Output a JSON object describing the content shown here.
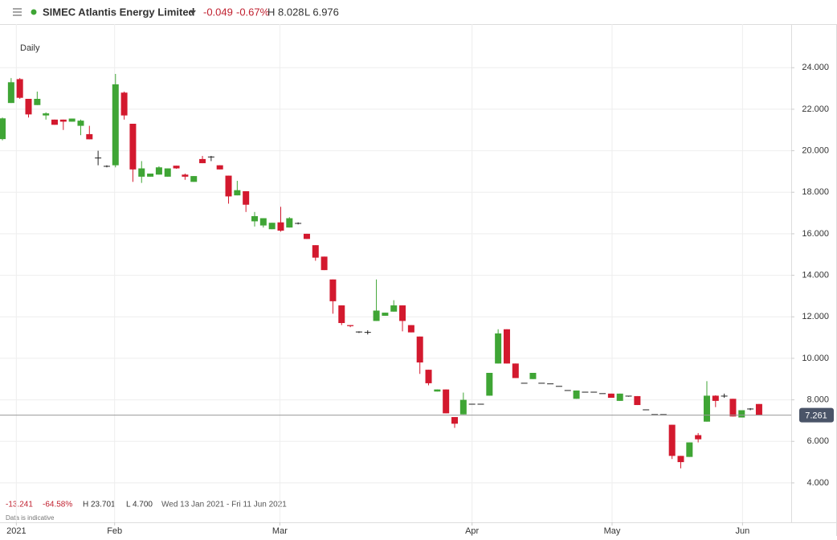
{
  "header": {
    "title": "SIMEC Atlantis Energy Limited",
    "change": "-0.049",
    "change_pct": "-0.67%",
    "high": "H 8.028",
    "low": "L 6.976"
  },
  "footer": {
    "change": "-13.241",
    "change_pct": "-64.58%",
    "high": "H 23.701",
    "low": "L 4.700",
    "range": "Wed 13 Jan 2021 - Fri 11 Jun 2021",
    "note": "Data is indicative"
  },
  "chart_data": {
    "type": "candlestick",
    "interval": "Daily",
    "up_color": "#3fa535",
    "down_color": "#d3192e",
    "flat_color": "#222",
    "open": [
      20.56,
      22.3,
      23.45,
      22.5,
      22.2,
      21.7,
      21.5,
      21.5,
      21.4,
      21.2,
      20.8,
      19.65,
      19.25,
      19.3,
      22.8,
      21.3,
      18.75,
      18.75,
      18.85,
      18.75,
      19.28,
      18.85,
      18.5,
      19.6,
      19.7,
      19.3,
      18.8,
      17.85,
      18.05,
      16.6,
      16.4,
      16.22,
      16.55,
      16.3,
      16.5,
      16.0,
      15.45,
      14.9,
      13.8,
      12.55,
      11.6,
      11.27,
      11.25,
      11.8,
      12.05,
      12.25,
      12.55,
      11.6,
      11.05,
      9.45,
      8.4,
      8.5,
      7.17,
      7.3,
      7.79,
      7.79,
      8.2,
      9.75,
      11.4,
      9.75,
      8.8,
      9.0,
      8.8,
      8.77,
      8.65,
      8.45,
      8.05,
      8.37,
      8.37,
      8.3,
      8.3,
      7.95,
      8.18,
      8.18,
      7.52,
      7.29,
      7.29,
      6.8,
      5.3,
      5.25,
      6.3,
      6.95,
      8.2,
      8.18,
      8.05,
      7.15,
      7.56,
      7.8
    ],
    "high": [
      21.6,
      23.5,
      23.5,
      22.5,
      22.85,
      21.85,
      21.5,
      21.5,
      21.55,
      21.5,
      21.2,
      20.0,
      19.3,
      23.7,
      22.85,
      21.3,
      19.5,
      18.9,
      19.25,
      19.15,
      19.28,
      18.9,
      18.78,
      19.75,
      19.75,
      19.3,
      18.8,
      18.55,
      18.05,
      17.05,
      16.75,
      16.53,
      17.3,
      16.8,
      16.55,
      16.0,
      15.45,
      14.9,
      13.8,
      12.55,
      11.6,
      11.3,
      11.35,
      13.8,
      12.2,
      12.8,
      12.55,
      11.6,
      11.05,
      9.45,
      8.5,
      8.5,
      7.17,
      8.35,
      7.79,
      7.79,
      9.3,
      11.4,
      11.4,
      9.75,
      8.8,
      9.3,
      8.8,
      8.77,
      8.65,
      8.45,
      8.45,
      8.37,
      8.37,
      8.3,
      8.3,
      8.3,
      8.18,
      8.18,
      7.52,
      7.29,
      7.29,
      6.8,
      5.3,
      5.95,
      6.4,
      8.9,
      8.22,
      8.3,
      8.05,
      7.5,
      7.6,
      7.8
    ],
    "low": [
      20.5,
      22.3,
      22.5,
      21.6,
      22.2,
      21.5,
      21.25,
      21.0,
      21.4,
      20.75,
      20.55,
      19.3,
      19.2,
      19.2,
      21.5,
      18.5,
      18.45,
      18.75,
      18.85,
      18.75,
      19.13,
      18.6,
      18.5,
      19.4,
      19.5,
      19.1,
      17.45,
      17.85,
      17.05,
      16.35,
      16.3,
      16.22,
      16.1,
      16.3,
      16.45,
      15.75,
      14.7,
      14.25,
      12.15,
      11.6,
      11.5,
      11.22,
      11.15,
      11.8,
      12.05,
      12.25,
      11.3,
      11.25,
      9.25,
      8.7,
      8.4,
      7.35,
      6.65,
      7.3,
      7.79,
      7.79,
      8.2,
      9.75,
      9.75,
      9.05,
      8.8,
      9.0,
      8.8,
      8.77,
      8.65,
      8.45,
      8.05,
      8.37,
      8.37,
      8.3,
      8.1,
      7.95,
      8.15,
      7.75,
      7.52,
      7.29,
      7.29,
      5.15,
      4.7,
      5.25,
      5.95,
      6.95,
      7.65,
      8.1,
      7.2,
      7.15,
      7.5,
      7.261
    ],
    "close": [
      21.56,
      23.3,
      22.55,
      21.75,
      22.5,
      21.8,
      21.25,
      21.4,
      21.55,
      21.45,
      20.55,
      19.65,
      19.25,
      23.2,
      21.7,
      19.1,
      19.15,
      18.9,
      19.2,
      19.15,
      19.15,
      18.75,
      18.78,
      19.4,
      19.7,
      19.1,
      17.8,
      18.1,
      17.4,
      16.85,
      16.75,
      16.53,
      16.15,
      16.75,
      16.5,
      15.75,
      14.85,
      14.25,
      12.75,
      11.7,
      11.55,
      11.27,
      11.25,
      12.3,
      12.2,
      12.55,
      11.8,
      11.25,
      9.8,
      8.8,
      8.5,
      7.35,
      6.85,
      8.0,
      7.79,
      7.79,
      9.3,
      11.2,
      9.75,
      9.05,
      8.8,
      9.3,
      8.8,
      8.77,
      8.65,
      8.45,
      8.45,
      8.37,
      8.37,
      8.3,
      8.1,
      8.3,
      8.18,
      7.75,
      7.52,
      7.29,
      7.29,
      5.3,
      5.0,
      5.95,
      6.1,
      8.2,
      7.95,
      8.18,
      7.2,
      7.5,
      7.56,
      7.261
    ],
    "xlim": [
      -0.28,
      90.7
    ],
    "xticks": [
      {
        "value": 1.6,
        "label": "2021"
      },
      {
        "value": 12.9,
        "label": "Feb"
      },
      {
        "value": 31.9,
        "label": "Mar"
      },
      {
        "value": 54,
        "label": "Apr"
      },
      {
        "value": 70.1,
        "label": "May"
      },
      {
        "value": 85.1,
        "label": "Jun"
      }
    ],
    "ylim": [
      2.1,
      26.1
    ],
    "yticks": [
      {
        "value": 4,
        "label": "4.000"
      },
      {
        "value": 6,
        "label": "6.000"
      },
      {
        "value": 8,
        "label": "8.000"
      },
      {
        "value": 10,
        "label": "10.000"
      },
      {
        "value": 12,
        "label": "12.000"
      },
      {
        "value": 14,
        "label": "14.000"
      },
      {
        "value": 16,
        "label": "16.000"
      },
      {
        "value": 18,
        "label": "18.000"
      },
      {
        "value": 20,
        "label": "20.000"
      },
      {
        "value": 22,
        "label": "22.000"
      },
      {
        "value": 24,
        "label": "24.000"
      }
    ],
    "grid": true,
    "last_price": 7.261
  }
}
